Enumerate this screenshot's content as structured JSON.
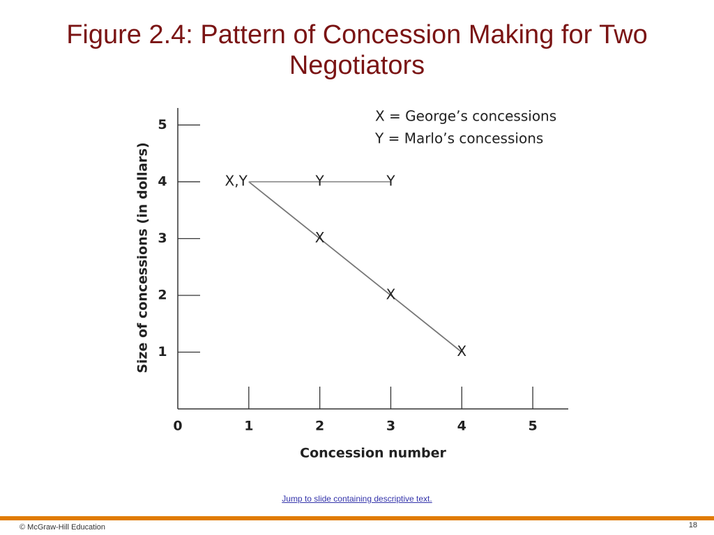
{
  "slide_title": "Figure 2.4: Pattern of Concession Making for Two Negotiators",
  "chart_data": {
    "type": "line",
    "x_label": "Concession number",
    "y_label": "Size of concessions (in dollars)",
    "series": [
      {
        "name": "X = George’s concessions",
        "marker": "X",
        "color": "#777777",
        "x": [
          1,
          2,
          3,
          4
        ],
        "values": [
          4,
          3,
          2,
          1
        ]
      },
      {
        "name": "Y = Marlo’s concessions",
        "marker": "Y",
        "color": "#999999",
        "x": [
          1,
          2,
          3
        ],
        "values": [
          4,
          4,
          4
        ]
      }
    ],
    "annotations": [
      {
        "text": "X,Y",
        "x": 1,
        "y": 4
      }
    ],
    "xlim": [
      0,
      5.5
    ],
    "ylim": [
      0,
      5.3
    ],
    "xticks": [
      0,
      1,
      2,
      3,
      4,
      5
    ],
    "yticks": [
      1,
      2,
      3,
      4,
      5
    ],
    "grid": false
  },
  "link": "Jump to slide containing descriptive text.",
  "footer": {
    "copyright": "© McGraw-Hill Education",
    "page_number": "18"
  }
}
